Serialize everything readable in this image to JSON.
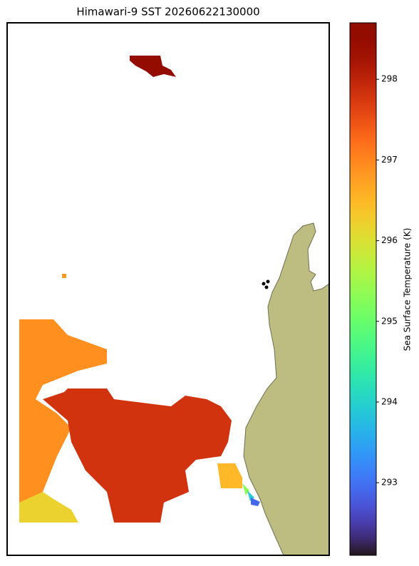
{
  "chart_data": {
    "type": "map",
    "title": "Himawari-9 SST 20260622130000",
    "colorbar": {
      "label": "Sea Surface Temperature (K)",
      "lim": [
        292.1,
        298.7
      ],
      "ticks": [
        293,
        294,
        295,
        296,
        297,
        298
      ]
    },
    "values": [
      298.5,
      296.9,
      297.8,
      296.2,
      296.5,
      295.3,
      293.9,
      292.9,
      296.8
    ]
  }
}
